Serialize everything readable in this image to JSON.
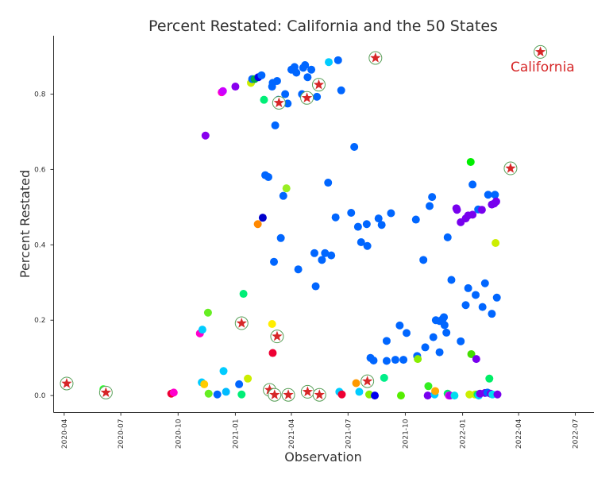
{
  "chart_data": {
    "type": "scatter",
    "title": "Percent Restated: California and the 50 States",
    "xlabel": "Observation",
    "ylabel": "Percent Restated",
    "xlim": [
      "2020-03-15",
      "2022-07-31"
    ],
    "ylim": [
      -0.045,
      0.955
    ],
    "x_ticks": [
      "2020-04",
      "2020-07",
      "2020-10",
      "2021-01",
      "2021-04",
      "2021-07",
      "2021-10",
      "2022-01",
      "2022-04",
      "2022-07"
    ],
    "y_ticks": [
      0.0,
      0.2,
      0.4,
      0.6,
      0.8
    ],
    "y_tick_labels": [
      "0.0",
      "0.2",
      "0.4",
      "0.6",
      "0.8"
    ],
    "grid": false,
    "annotation": {
      "text": "California",
      "color": "#d62728"
    },
    "highlight_series": "California",
    "state_points": [
      {
        "x": "2020-06-03",
        "y": 0.017,
        "color": "#33ff33"
      },
      {
        "x": "2020-09-20",
        "y": 0.005,
        "color": "#ee0033"
      },
      {
        "x": "2020-09-24",
        "y": 0.008,
        "color": "#ff00cc"
      },
      {
        "x": "2020-11-05",
        "y": 0.165,
        "color": "#ff00cc"
      },
      {
        "x": "2020-11-08",
        "y": 0.035,
        "color": "#00ccff"
      },
      {
        "x": "2020-11-09",
        "y": 0.175,
        "color": "#00ccff"
      },
      {
        "x": "2020-11-12",
        "y": 0.03,
        "color": "#ffcc00"
      },
      {
        "x": "2020-11-14",
        "y": 0.69,
        "color": "#8800ee"
      },
      {
        "x": "2020-11-18",
        "y": 0.22,
        "color": "#66ee22"
      },
      {
        "x": "2020-11-19",
        "y": 0.005,
        "color": "#66ee22"
      },
      {
        "x": "2020-12-03",
        "y": 0.003,
        "color": "#0066ff"
      },
      {
        "x": "2020-12-10",
        "y": 0.805,
        "color": "#ff00cc"
      },
      {
        "x": "2020-12-12",
        "y": 0.808,
        "color": "#cc00ff"
      },
      {
        "x": "2020-12-13",
        "y": 0.065,
        "color": "#00ccff"
      },
      {
        "x": "2020-12-17",
        "y": 0.01,
        "color": "#00bbff"
      },
      {
        "x": "2021-01-01",
        "y": 0.82,
        "color": "#8800ee"
      },
      {
        "x": "2021-01-07",
        "y": 0.03,
        "color": "#0066ff"
      },
      {
        "x": "2021-01-11",
        "y": 0.003,
        "color": "#00ee77"
      },
      {
        "x": "2021-01-14",
        "y": 0.27,
        "color": "#00ee77"
      },
      {
        "x": "2021-01-21",
        "y": 0.045,
        "color": "#ccee00"
      },
      {
        "x": "2021-01-26",
        "y": 0.83,
        "color": "#ccee00"
      },
      {
        "x": "2021-01-28",
        "y": 0.84,
        "color": "#0066ff"
      },
      {
        "x": "2021-02-01",
        "y": 0.84,
        "color": "#00aa44"
      },
      {
        "x": "2021-02-06",
        "y": 0.455,
        "color": "#ff8800"
      },
      {
        "x": "2021-02-07",
        "y": 0.845,
        "color": "#0000ee"
      },
      {
        "x": "2021-02-12",
        "y": 0.85,
        "color": "#0066ff"
      },
      {
        "x": "2021-02-14",
        "y": 0.472,
        "color": "#0000cc"
      },
      {
        "x": "2021-02-16",
        "y": 0.785,
        "color": "#00ee77"
      },
      {
        "x": "2021-02-18",
        "y": 0.585,
        "color": "#0066ff"
      },
      {
        "x": "2021-02-23",
        "y": 0.58,
        "color": "#0066ff"
      },
      {
        "x": "2021-03-02",
        "y": 0.83,
        "color": "#0066ff"
      },
      {
        "x": "2021-03-01",
        "y": 0.82,
        "color": "#0066ff"
      },
      {
        "x": "2021-03-01",
        "y": 0.19,
        "color": "#ffee00"
      },
      {
        "x": "2021-03-02",
        "y": 0.113,
        "color": "#ee0033"
      },
      {
        "x": "2021-03-04",
        "y": 0.355,
        "color": "#0066ff"
      },
      {
        "x": "2021-03-06",
        "y": 0.717,
        "color": "#0066ff"
      },
      {
        "x": "2021-03-09",
        "y": 0.835,
        "color": "#0066ff"
      },
      {
        "x": "2021-03-11",
        "y": 0.785,
        "color": "#0066ff"
      },
      {
        "x": "2021-03-15",
        "y": 0.418,
        "color": "#0066ff"
      },
      {
        "x": "2021-03-19",
        "y": 0.53,
        "color": "#0066ff"
      },
      {
        "x": "2021-03-22",
        "y": 0.8,
        "color": "#0066ff"
      },
      {
        "x": "2021-03-24",
        "y": 0.55,
        "color": "#99ee22"
      },
      {
        "x": "2021-03-26",
        "y": 0.775,
        "color": "#0066ff"
      },
      {
        "x": "2021-04-01",
        "y": 0.865,
        "color": "#0066ff"
      },
      {
        "x": "2021-04-06",
        "y": 0.872,
        "color": "#0066ff"
      },
      {
        "x": "2021-04-09",
        "y": 0.857,
        "color": "#0066ff"
      },
      {
        "x": "2021-04-12",
        "y": 0.335,
        "color": "#0066ff"
      },
      {
        "x": "2021-04-18",
        "y": 0.8,
        "color": "#0066ff"
      },
      {
        "x": "2021-04-20",
        "y": 0.87,
        "color": "#0066ff"
      },
      {
        "x": "2021-04-23",
        "y": 0.877,
        "color": "#0066ff"
      },
      {
        "x": "2021-04-27",
        "y": 0.845,
        "color": "#0066ff"
      },
      {
        "x": "2021-05-03",
        "y": 0.865,
        "color": "#0066ff"
      },
      {
        "x": "2021-05-08",
        "y": 0.378,
        "color": "#0066ff"
      },
      {
        "x": "2021-05-10",
        "y": 0.29,
        "color": "#0066ff"
      },
      {
        "x": "2021-05-12",
        "y": 0.793,
        "color": "#0066ff"
      },
      {
        "x": "2021-05-20",
        "y": 0.36,
        "color": "#0066ff"
      },
      {
        "x": "2021-05-25",
        "y": 0.378,
        "color": "#0066ff"
      },
      {
        "x": "2021-05-30",
        "y": 0.565,
        "color": "#0066ff"
      },
      {
        "x": "2021-05-31",
        "y": 0.885,
        "color": "#00ccff"
      },
      {
        "x": "2021-06-04",
        "y": 0.372,
        "color": "#0066ff"
      },
      {
        "x": "2021-06-11",
        "y": 0.473,
        "color": "#0066ff"
      },
      {
        "x": "2021-06-15",
        "y": 0.89,
        "color": "#0066ff"
      },
      {
        "x": "2021-06-17",
        "y": 0.01,
        "color": "#00ccff"
      },
      {
        "x": "2021-06-20",
        "y": 0.81,
        "color": "#0066ff"
      },
      {
        "x": "2021-06-21",
        "y": 0.003,
        "color": "#ee0033"
      },
      {
        "x": "2021-07-06",
        "y": 0.485,
        "color": "#0066ff"
      },
      {
        "x": "2021-07-11",
        "y": 0.66,
        "color": "#0066ff"
      },
      {
        "x": "2021-07-14",
        "y": 0.033,
        "color": "#ff9900"
      },
      {
        "x": "2021-07-17",
        "y": 0.448,
        "color": "#0066ff"
      },
      {
        "x": "2021-07-19",
        "y": 0.01,
        "color": "#00ccff"
      },
      {
        "x": "2021-07-22",
        "y": 0.407,
        "color": "#0066ff"
      },
      {
        "x": "2021-07-31",
        "y": 0.455,
        "color": "#0066ff"
      },
      {
        "x": "2021-08-01",
        "y": 0.397,
        "color": "#0066ff"
      },
      {
        "x": "2021-08-04",
        "y": 0.003,
        "color": "#88ee00"
      },
      {
        "x": "2021-08-06",
        "y": 0.1,
        "color": "#0066ff"
      },
      {
        "x": "2021-08-11",
        "y": 0.093,
        "color": "#0066ff"
      },
      {
        "x": "2021-08-13",
        "y": 0.0,
        "color": "#0000ee"
      },
      {
        "x": "2021-08-19",
        "y": 0.47,
        "color": "#0066ff"
      },
      {
        "x": "2021-08-24",
        "y": 0.453,
        "color": "#0066ff"
      },
      {
        "x": "2021-08-28",
        "y": 0.047,
        "color": "#00ee88"
      },
      {
        "x": "2021-09-01",
        "y": 0.145,
        "color": "#0066ff"
      },
      {
        "x": "2021-09-01",
        "y": 0.092,
        "color": "#0066ff"
      },
      {
        "x": "2021-09-08",
        "y": 0.484,
        "color": "#0066ff"
      },
      {
        "x": "2021-09-15",
        "y": 0.095,
        "color": "#0066ff"
      },
      {
        "x": "2021-09-22",
        "y": 0.186,
        "color": "#0066ff"
      },
      {
        "x": "2021-09-24",
        "y": 0.0,
        "color": "#55ee00"
      },
      {
        "x": "2021-09-28",
        "y": 0.095,
        "color": "#0066ff"
      },
      {
        "x": "2021-10-03",
        "y": 0.166,
        "color": "#0066ff"
      },
      {
        "x": "2021-10-18",
        "y": 0.467,
        "color": "#0066ff"
      },
      {
        "x": "2021-10-20",
        "y": 0.105,
        "color": "#0066ff"
      },
      {
        "x": "2021-10-21",
        "y": 0.097,
        "color": "#88ee00"
      },
      {
        "x": "2021-10-30",
        "y": 0.36,
        "color": "#0066ff"
      },
      {
        "x": "2021-11-02",
        "y": 0.128,
        "color": "#0066ff"
      },
      {
        "x": "2021-11-06",
        "y": 0.0,
        "color": "#7700ee"
      },
      {
        "x": "2021-11-07",
        "y": 0.025,
        "color": "#33ee22"
      },
      {
        "x": "2021-11-09",
        "y": 0.503,
        "color": "#0066ff"
      },
      {
        "x": "2021-11-13",
        "y": 0.527,
        "color": "#0066ff"
      },
      {
        "x": "2021-11-15",
        "y": 0.155,
        "color": "#0066ff"
      },
      {
        "x": "2021-11-17",
        "y": 0.003,
        "color": "#00ccff"
      },
      {
        "x": "2021-11-18",
        "y": 0.012,
        "color": "#ffaa00"
      },
      {
        "x": "2021-11-19",
        "y": 0.2,
        "color": "#0066ff"
      },
      {
        "x": "2021-11-25",
        "y": 0.198,
        "color": "#0066ff"
      },
      {
        "x": "2021-11-25",
        "y": 0.115,
        "color": "#0066ff"
      },
      {
        "x": "2021-11-30",
        "y": 0.203,
        "color": "#0066ff"
      },
      {
        "x": "2021-12-02",
        "y": 0.208,
        "color": "#0066ff"
      },
      {
        "x": "2021-12-03",
        "y": 0.187,
        "color": "#0066ff"
      },
      {
        "x": "2021-12-06",
        "y": 0.167,
        "color": "#0066ff"
      },
      {
        "x": "2021-12-08",
        "y": 0.005,
        "color": "#00ee66"
      },
      {
        "x": "2021-12-08",
        "y": 0.42,
        "color": "#0066ff"
      },
      {
        "x": "2021-12-10",
        "y": 0.0,
        "color": "#ee00ee"
      },
      {
        "x": "2021-12-12",
        "y": 0.0,
        "color": "#aa00ee"
      },
      {
        "x": "2021-12-14",
        "y": 0.307,
        "color": "#0066ff"
      },
      {
        "x": "2021-12-19",
        "y": 0.0,
        "color": "#00ddee"
      },
      {
        "x": "2021-12-22",
        "y": 0.497,
        "color": "#7700ee"
      },
      {
        "x": "2021-12-23",
        "y": 0.493,
        "color": "#7700ee"
      },
      {
        "x": "2021-12-29",
        "y": 0.144,
        "color": "#0066ff"
      },
      {
        "x": "2021-12-29",
        "y": 0.46,
        "color": "#7700ee"
      },
      {
        "x": "2022-01-06",
        "y": 0.24,
        "color": "#0066ff"
      },
      {
        "x": "2022-01-06",
        "y": 0.47,
        "color": "#7700ee"
      },
      {
        "x": "2022-01-10",
        "y": 0.285,
        "color": "#0066ff"
      },
      {
        "x": "2022-01-10",
        "y": 0.478,
        "color": "#7700ee"
      },
      {
        "x": "2022-01-12",
        "y": 0.003,
        "color": "#ccee00"
      },
      {
        "x": "2022-01-14",
        "y": 0.62,
        "color": "#00ee00"
      },
      {
        "x": "2022-01-15",
        "y": 0.11,
        "color": "#44dd00"
      },
      {
        "x": "2022-01-17",
        "y": 0.48,
        "color": "#7700ee"
      },
      {
        "x": "2022-01-17",
        "y": 0.56,
        "color": "#0066ff"
      },
      {
        "x": "2022-01-21",
        "y": 0.003,
        "color": "#ccee00"
      },
      {
        "x": "2022-01-22",
        "y": 0.267,
        "color": "#0066ff"
      },
      {
        "x": "2022-01-23",
        "y": 0.097,
        "color": "#7700ee"
      },
      {
        "x": "2022-01-25",
        "y": 0.003,
        "color": "#00ee66"
      },
      {
        "x": "2022-01-26",
        "y": 0.494,
        "color": "#0066ff"
      },
      {
        "x": "2022-01-27",
        "y": 0.0,
        "color": "#00ccff"
      },
      {
        "x": "2022-01-29",
        "y": 0.005,
        "color": "#7700ee"
      },
      {
        "x": "2022-02-01",
        "y": 0.493,
        "color": "#7700ee"
      },
      {
        "x": "2022-02-02",
        "y": 0.235,
        "color": "#0066ff"
      },
      {
        "x": "2022-02-06",
        "y": 0.298,
        "color": "#0066ff"
      },
      {
        "x": "2022-02-06",
        "y": 0.007,
        "color": "#7700ee"
      },
      {
        "x": "2022-02-10",
        "y": 0.008,
        "color": "#0066ff"
      },
      {
        "x": "2022-02-11",
        "y": 0.533,
        "color": "#0066ff"
      },
      {
        "x": "2022-02-13",
        "y": 0.045,
        "color": "#00ee66"
      },
      {
        "x": "2022-02-15",
        "y": 0.005,
        "color": "#7700ee"
      },
      {
        "x": "2022-02-17",
        "y": 0.217,
        "color": "#0066ff"
      },
      {
        "x": "2022-02-17",
        "y": 0.507,
        "color": "#7700ee"
      },
      {
        "x": "2022-02-18",
        "y": 0.003,
        "color": "#00ddee"
      },
      {
        "x": "2022-02-21",
        "y": 0.51,
        "color": "#7700ee"
      },
      {
        "x": "2022-02-22",
        "y": 0.533,
        "color": "#0066ff"
      },
      {
        "x": "2022-02-23",
        "y": 0.405,
        "color": "#ccee00"
      },
      {
        "x": "2022-02-24",
        "y": 0.515,
        "color": "#7700ee"
      },
      {
        "x": "2022-02-25",
        "y": 0.26,
        "color": "#0066ff"
      },
      {
        "x": "2022-02-26",
        "y": 0.003,
        "color": "#7700ee"
      }
    ],
    "california_points": [
      {
        "x": "2020-04-05",
        "y": 0.032
      },
      {
        "x": "2020-06-07",
        "y": 0.008
      },
      {
        "x": "2021-01-11",
        "y": 0.192
      },
      {
        "x": "2021-02-25",
        "y": 0.015
      },
      {
        "x": "2021-03-05",
        "y": 0.002
      },
      {
        "x": "2021-03-09",
        "y": 0.157
      },
      {
        "x": "2021-03-12",
        "y": 0.777
      },
      {
        "x": "2021-03-27",
        "y": 0.002
      },
      {
        "x": "2021-04-26",
        "y": 0.79
      },
      {
        "x": "2021-04-27",
        "y": 0.01
      },
      {
        "x": "2021-05-15",
        "y": 0.825
      },
      {
        "x": "2021-05-16",
        "y": 0.002
      },
      {
        "x": "2021-08-01",
        "y": 0.038
      },
      {
        "x": "2021-08-14",
        "y": 0.896
      },
      {
        "x": "2022-03-19",
        "y": 0.603
      },
      {
        "x": "2022-05-06",
        "y": 0.912
      }
    ]
  }
}
